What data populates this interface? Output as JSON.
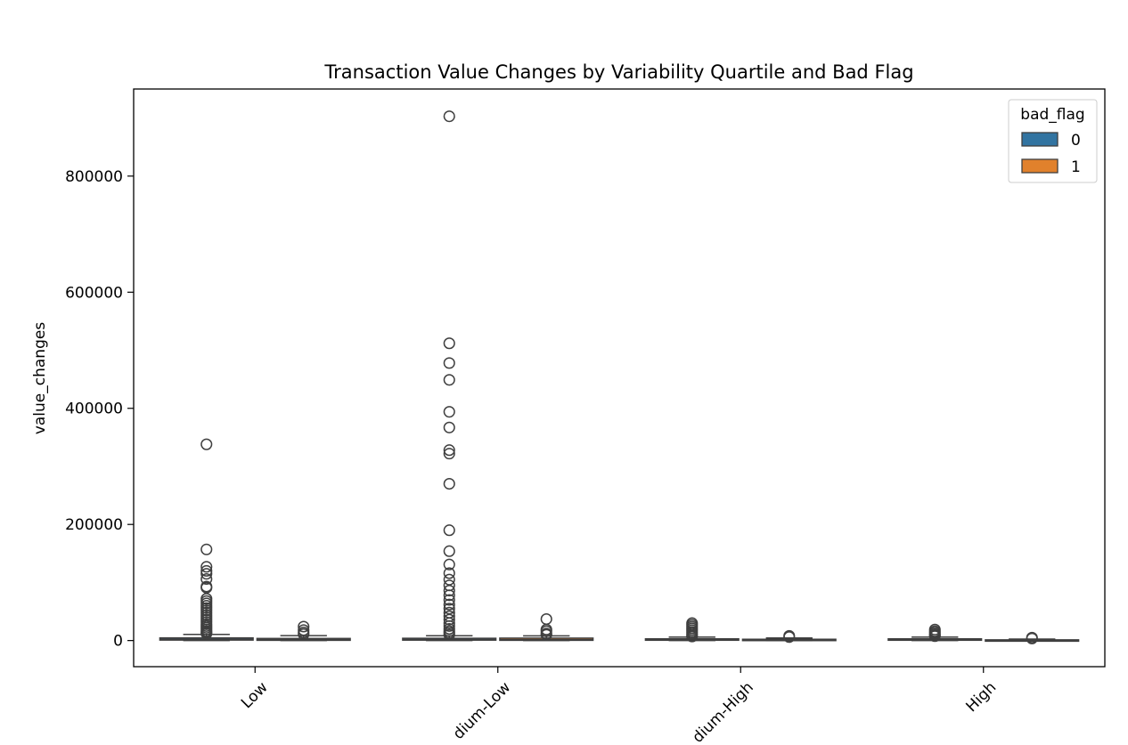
{
  "chart_data": {
    "type": "box",
    "title": "Transaction Value Changes by Variability Quartile and Bad Flag",
    "xlabel": "",
    "ylabel": "value_changes",
    "ylim": [
      -45000,
      950000
    ],
    "yticks": [
      0,
      200000,
      400000,
      600000,
      800000
    ],
    "ytick_labels": [
      "0",
      "200000",
      "400000",
      "600000",
      "800000"
    ],
    "categories": [
      "Low",
      "Medium-Low",
      "Medium-High",
      "High"
    ],
    "category_labels_visible": [
      "Low",
      "dium-Low",
      "dium-High",
      "High"
    ],
    "legend": {
      "title": "bad_flag",
      "placement": "top-right",
      "entries": [
        "0",
        "1"
      ]
    },
    "colors": {
      "0": "#3274a1",
      "1": "#e1812c"
    },
    "series": [
      {
        "name": "0",
        "boxes": [
          {
            "q1": 800,
            "median": 2200,
            "q3": 4600,
            "whisker_low": 0,
            "whisker_high": 10500,
            "outliers": [
              338000,
              157000,
              127000,
              120000,
              115000,
              106000,
              93000,
              91000,
              72000,
              68000,
              64000,
              60000,
              56000,
              52000,
              48000,
              44000,
              40000,
              36000,
              32000,
              28000,
              25000,
              22000,
              19000,
              16000,
              14000,
              12000
            ]
          },
          {
            "q1": 700,
            "median": 2000,
            "q3": 3900,
            "whisker_low": 0,
            "whisker_high": 8200,
            "outliers": [
              903000,
              512000,
              478000,
              449000,
              394000,
              367000,
              328000,
              322000,
              270000,
              190000,
              154000,
              131000,
              116000,
              105000,
              95000,
              86000,
              78000,
              70000,
              62000,
              55000,
              48000,
              42000,
              36000,
              30000,
              25000,
              20000,
              16000,
              13000,
              10000
            ]
          },
          {
            "q1": 500,
            "median": 1500,
            "q3": 3000,
            "whisker_low": 0,
            "whisker_high": 6000,
            "outliers": [
              30000,
              27000,
              24000,
              21000,
              18000,
              15000,
              12000,
              9000,
              7000
            ]
          },
          {
            "q1": 500,
            "median": 1500,
            "q3": 3000,
            "whisker_low": 0,
            "whisker_high": 6000,
            "outliers": [
              19000,
              16000,
              13500,
              11000,
              9000,
              7500
            ]
          }
        ]
      },
      {
        "name": "1",
        "boxes": [
          {
            "q1": 400,
            "median": 1300,
            "q3": 3600,
            "whisker_low": 0,
            "whisker_high": 8500,
            "outliers": [
              24000,
              18000,
              14000,
              11000
            ]
          },
          {
            "q1": 400,
            "median": 1600,
            "q3": 4200,
            "whisker_low": 0,
            "whisker_high": 8000,
            "outliers": [
              37000,
              19000,
              16000,
              12000,
              10000
            ]
          },
          {
            "q1": 300,
            "median": 900,
            "q3": 2200,
            "whisker_low": 0,
            "whisker_high": 4500,
            "outliers": [
              8000,
              6000
            ]
          },
          {
            "q1": 100,
            "median": 400,
            "q3": 1200,
            "whisker_low": 0,
            "whisker_high": 2500,
            "outliers": [
              5000,
              3500
            ]
          }
        ]
      }
    ]
  }
}
